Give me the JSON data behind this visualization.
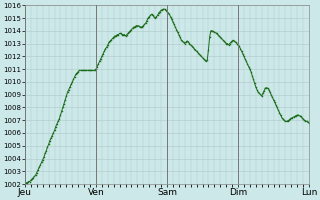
{
  "bg_color": "#cce8e8",
  "plot_bg_color": "#cce8e8",
  "line_color": "#1a6b1a",
  "marker_color": "#1a6b1a",
  "grid_color": "#b0c8c8",
  "vline_color": "#777777",
  "ylim": [
    1002,
    1016
  ],
  "yticks": [
    1002,
    1003,
    1004,
    1005,
    1006,
    1007,
    1008,
    1009,
    1010,
    1011,
    1012,
    1013,
    1014,
    1015,
    1016
  ],
  "xtick_labels": [
    "Jeu",
    "Ven",
    "Sam",
    "Dim",
    "Lun"
  ],
  "xtick_positions": [
    0,
    60,
    120,
    180,
    240
  ],
  "vline_positions": [
    0,
    60,
    120,
    180,
    240
  ],
  "num_points": 241,
  "pressure_values": [
    1002.0,
    1002.1,
    1002.1,
    1002.2,
    1002.2,
    1002.3,
    1002.4,
    1002.5,
    1002.6,
    1002.7,
    1002.9,
    1003.1,
    1003.3,
    1003.5,
    1003.7,
    1003.9,
    1004.1,
    1004.4,
    1004.6,
    1004.9,
    1005.1,
    1005.4,
    1005.6,
    1005.8,
    1006.0,
    1006.2,
    1006.5,
    1006.7,
    1006.9,
    1007.1,
    1007.4,
    1007.7,
    1008.0,
    1008.3,
    1008.6,
    1008.9,
    1009.2,
    1009.4,
    1009.6,
    1009.8,
    1010.0,
    1010.2,
    1010.4,
    1010.6,
    1010.7,
    1010.8,
    1010.9,
    1010.9,
    1010.9,
    1010.9,
    1010.9,
    1010.9,
    1010.9,
    1010.9,
    1010.9,
    1010.9,
    1010.9,
    1010.9,
    1010.9,
    1010.9,
    1011.0,
    1011.2,
    1011.4,
    1011.6,
    1011.8,
    1012.0,
    1012.2,
    1012.4,
    1012.6,
    1012.7,
    1012.9,
    1013.1,
    1013.2,
    1013.3,
    1013.4,
    1013.5,
    1013.6,
    1013.6,
    1013.7,
    1013.7,
    1013.8,
    1013.8,
    1013.7,
    1013.7,
    1013.7,
    1013.6,
    1013.7,
    1013.8,
    1013.9,
    1014.0,
    1014.1,
    1014.2,
    1014.3,
    1014.3,
    1014.4,
    1014.4,
    1014.4,
    1014.3,
    1014.3,
    1014.3,
    1014.4,
    1014.5,
    1014.6,
    1014.8,
    1015.0,
    1015.1,
    1015.2,
    1015.3,
    1015.2,
    1015.1,
    1015.0,
    1015.1,
    1015.2,
    1015.4,
    1015.5,
    1015.6,
    1015.65,
    1015.7,
    1015.7,
    1015.6,
    1015.5,
    1015.4,
    1015.3,
    1015.1,
    1014.9,
    1014.7,
    1014.5,
    1014.3,
    1014.1,
    1013.9,
    1013.7,
    1013.5,
    1013.3,
    1013.2,
    1013.1,
    1013.0,
    1013.1,
    1013.2,
    1013.15,
    1013.0,
    1012.9,
    1012.8,
    1012.7,
    1012.6,
    1012.5,
    1012.4,
    1012.3,
    1012.2,
    1012.1,
    1012.0,
    1011.9,
    1011.8,
    1011.7,
    1011.6,
    1011.7,
    1012.5,
    1013.5,
    1014.0,
    1014.0,
    1013.95,
    1013.9,
    1013.85,
    1013.8,
    1013.7,
    1013.6,
    1013.5,
    1013.4,
    1013.3,
    1013.2,
    1013.1,
    1013.0,
    1013.0,
    1012.9,
    1013.0,
    1013.1,
    1013.2,
    1013.25,
    1013.2,
    1013.1,
    1013.0,
    1012.9,
    1012.8,
    1012.6,
    1012.4,
    1012.2,
    1012.0,
    1011.8,
    1011.6,
    1011.4,
    1011.2,
    1011.0,
    1010.8,
    1010.5,
    1010.2,
    1009.9,
    1009.6,
    1009.4,
    1009.2,
    1009.1,
    1009.0,
    1008.9,
    1009.1,
    1009.3,
    1009.5,
    1009.55,
    1009.5,
    1009.4,
    1009.2,
    1009.0,
    1008.8,
    1008.6,
    1008.4,
    1008.2,
    1008.0,
    1007.8,
    1007.6,
    1007.4,
    1007.2,
    1007.1,
    1007.0,
    1006.9,
    1006.9,
    1006.95,
    1007.0,
    1007.1,
    1007.15,
    1007.2,
    1007.25,
    1007.3,
    1007.35,
    1007.4,
    1007.4,
    1007.35,
    1007.3,
    1007.2,
    1007.1,
    1007.0,
    1006.95,
    1006.9,
    1006.85,
    1006.8
  ]
}
